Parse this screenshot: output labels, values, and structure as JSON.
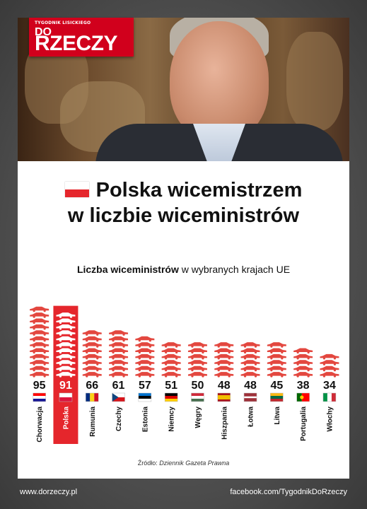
{
  "logo": {
    "tagline": "TYGODNIK LISICKIEGO",
    "do": "DO",
    "rzeczy": "RZECZY"
  },
  "headline": {
    "line1": "Polska wicemistrzem",
    "line2": "w liczbie wiceministrów"
  },
  "subtitle": {
    "bold": "Liczba wiceministrów",
    "rest": " w wybranych krajach UE"
  },
  "source": {
    "prefix": "Źródło: ",
    "name": "Dziennik Gazeta Prawna"
  },
  "footer": {
    "left": "www.dorzeczy.pl",
    "right": "facebook.com/TygodnikDoRzeczy"
  },
  "colors": {
    "brand_red": "#d1001c",
    "car_red": "#e3473f",
    "highlight": "#e5262c"
  },
  "chart_data": {
    "type": "bar",
    "title": "",
    "xlabel": "",
    "ylabel": "",
    "categories": [
      "Chorwacja",
      "Polska",
      "Rumunia",
      "Czechy",
      "Estonia",
      "Niemcy",
      "Węgry",
      "Hiszpania",
      "Łotwa",
      "Litwa",
      "Portugalia",
      "Włochy"
    ],
    "values": [
      95,
      91,
      66,
      61,
      57,
      51,
      50,
      48,
      48,
      45,
      38,
      34
    ],
    "highlight": "Polska",
    "flags": [
      {
        "kind": "h3",
        "colors": [
          "#ff0000",
          "#ffffff",
          "#171796"
        ]
      },
      {
        "kind": "h2",
        "colors": [
          "#ffffff",
          "#dc143c"
        ]
      },
      {
        "kind": "v3",
        "colors": [
          "#002b7f",
          "#fcd116",
          "#ce1126"
        ]
      },
      {
        "kind": "cz",
        "colors": [
          "#ffffff",
          "#d7141a",
          "#11457e"
        ]
      },
      {
        "kind": "h3",
        "colors": [
          "#0072ce",
          "#000000",
          "#ffffff"
        ]
      },
      {
        "kind": "h3",
        "colors": [
          "#000000",
          "#dd0000",
          "#ffce00"
        ]
      },
      {
        "kind": "h3",
        "colors": [
          "#ce2939",
          "#ffffff",
          "#477050"
        ]
      },
      {
        "kind": "es",
        "colors": [
          "#aa151b",
          "#f1bf00",
          "#aa151b"
        ]
      },
      {
        "kind": "lv",
        "colors": [
          "#9e3039",
          "#ffffff",
          "#9e3039"
        ]
      },
      {
        "kind": "h3",
        "colors": [
          "#fdb913",
          "#006a44",
          "#c1272d"
        ]
      },
      {
        "kind": "pt",
        "colors": [
          "#006600",
          "#ff0000",
          "#ffcc00"
        ]
      },
      {
        "kind": "v3",
        "colors": [
          "#009246",
          "#ffffff",
          "#ce2b37"
        ]
      }
    ]
  }
}
